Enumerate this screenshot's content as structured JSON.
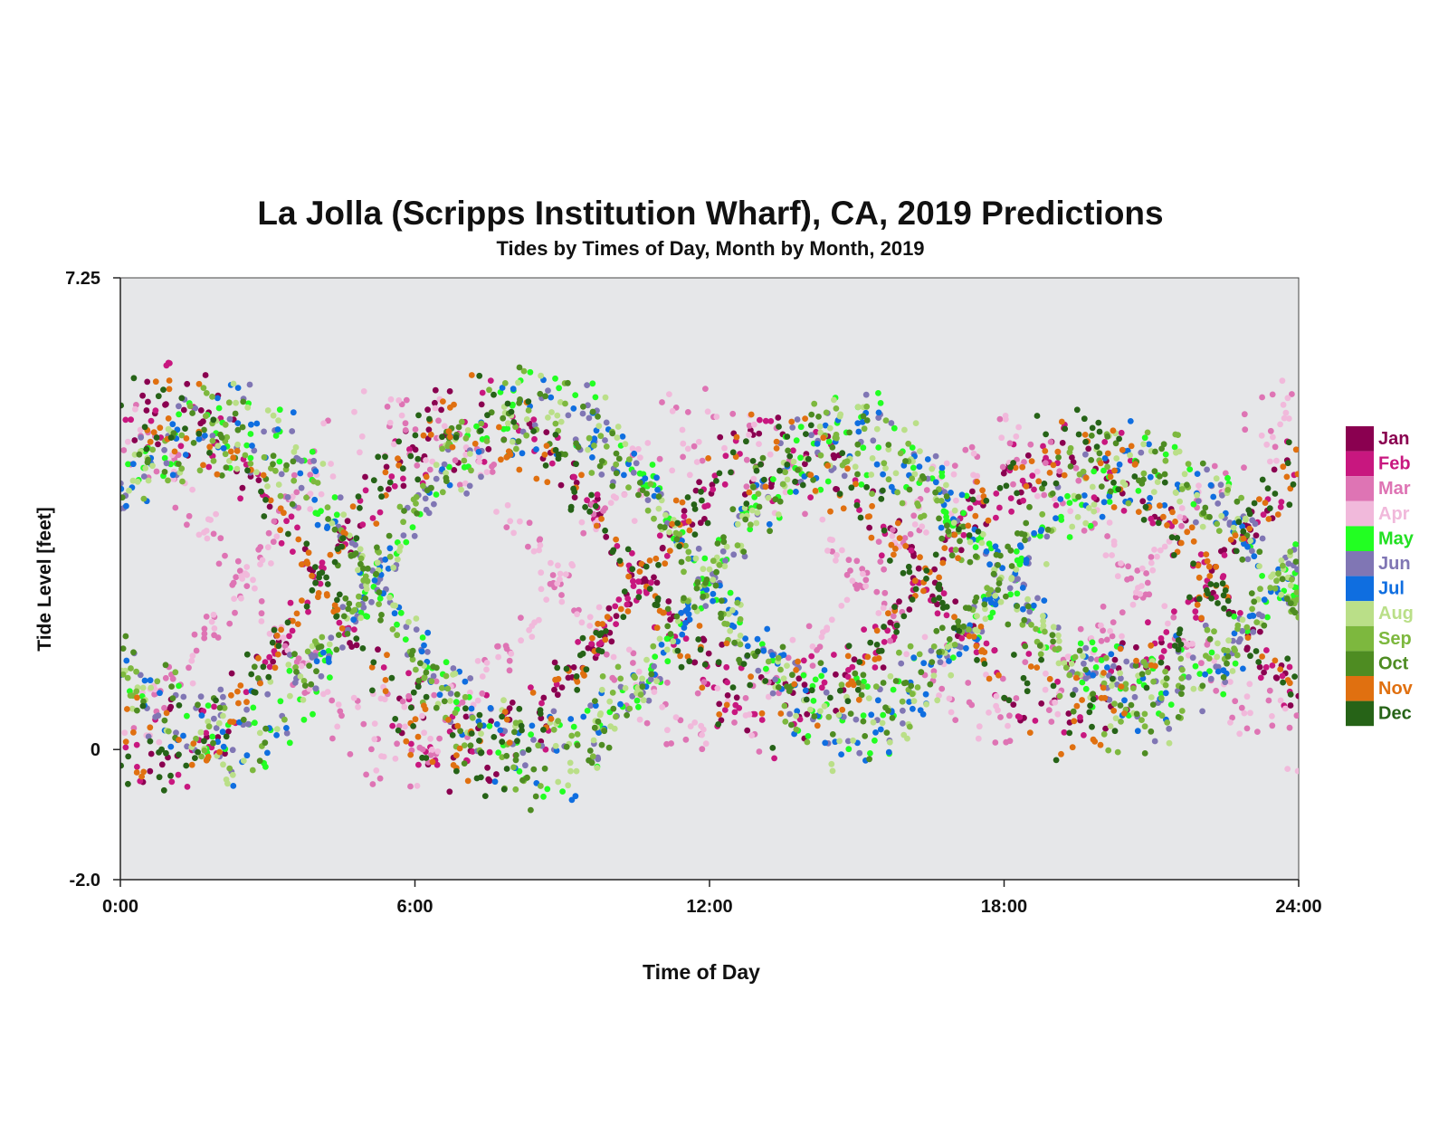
{
  "chart_data": {
    "type": "scatter",
    "title": "La Jolla (Scripps Institution Wharf), CA, 2019 Predictions",
    "subtitle": "Tides by Times of Day, Month by Month, 2019",
    "xlabel": "Time of Day",
    "ylabel": "Tide Level [feet]",
    "xlim": [
      0,
      24
    ],
    "ylim": [
      -2.0,
      7.25
    ],
    "x_ticks": [
      {
        "value": 0,
        "label": "0:00"
      },
      {
        "value": 6,
        "label": "6:00"
      },
      {
        "value": 12,
        "label": "12:00"
      },
      {
        "value": 18,
        "label": "18:00"
      },
      {
        "value": 24,
        "label": "24:00"
      }
    ],
    "y_ticks": [
      {
        "value": 7.25,
        "label": "7.25"
      },
      {
        "value": 0,
        "label": "0"
      },
      {
        "value": -2.0,
        "label": "-2.0"
      }
    ],
    "grid": false,
    "legend_position": "right",
    "plot_background": "#e6e7e9",
    "series": [
      {
        "name": "Jan",
        "color": "#8a0050",
        "label_color": "#8a0050",
        "pattern": "winter",
        "seed": 11
      },
      {
        "name": "Feb",
        "color": "#c8177f",
        "label_color": "#c8177f",
        "pattern": "winter",
        "seed": 23
      },
      {
        "name": "Mar",
        "color": "#de74b4",
        "label_color": "#de74b4",
        "pattern": "spring",
        "seed": 37
      },
      {
        "name": "Apr",
        "color": "#f1b9db",
        "label_color": "#f1b9db",
        "pattern": "spring",
        "seed": 41
      },
      {
        "name": "May",
        "color": "#22ff22",
        "label_color": "#22e022",
        "pattern": "summer",
        "seed": 53
      },
      {
        "name": "Jun",
        "color": "#8076b4",
        "label_color": "#8076b4",
        "pattern": "summer",
        "seed": 67
      },
      {
        "name": "Jul",
        "color": "#0f6ee0",
        "label_color": "#0f6ee0",
        "pattern": "summer",
        "seed": 71
      },
      {
        "name": "Aug",
        "color": "#badf88",
        "label_color": "#badf88",
        "pattern": "summer",
        "seed": 83
      },
      {
        "name": "Sep",
        "color": "#7db83e",
        "label_color": "#7db83e",
        "pattern": "autumn",
        "seed": 97
      },
      {
        "name": "Oct",
        "color": "#4e8c22",
        "label_color": "#4e8c22",
        "pattern": "autumn",
        "seed": 101
      },
      {
        "name": "Nov",
        "color": "#e07010",
        "label_color": "#e07010",
        "pattern": "winter",
        "seed": 113
      },
      {
        "name": "Dec",
        "color": "#266317",
        "label_color": "#266317",
        "pattern": "winter",
        "seed": 127
      }
    ]
  }
}
